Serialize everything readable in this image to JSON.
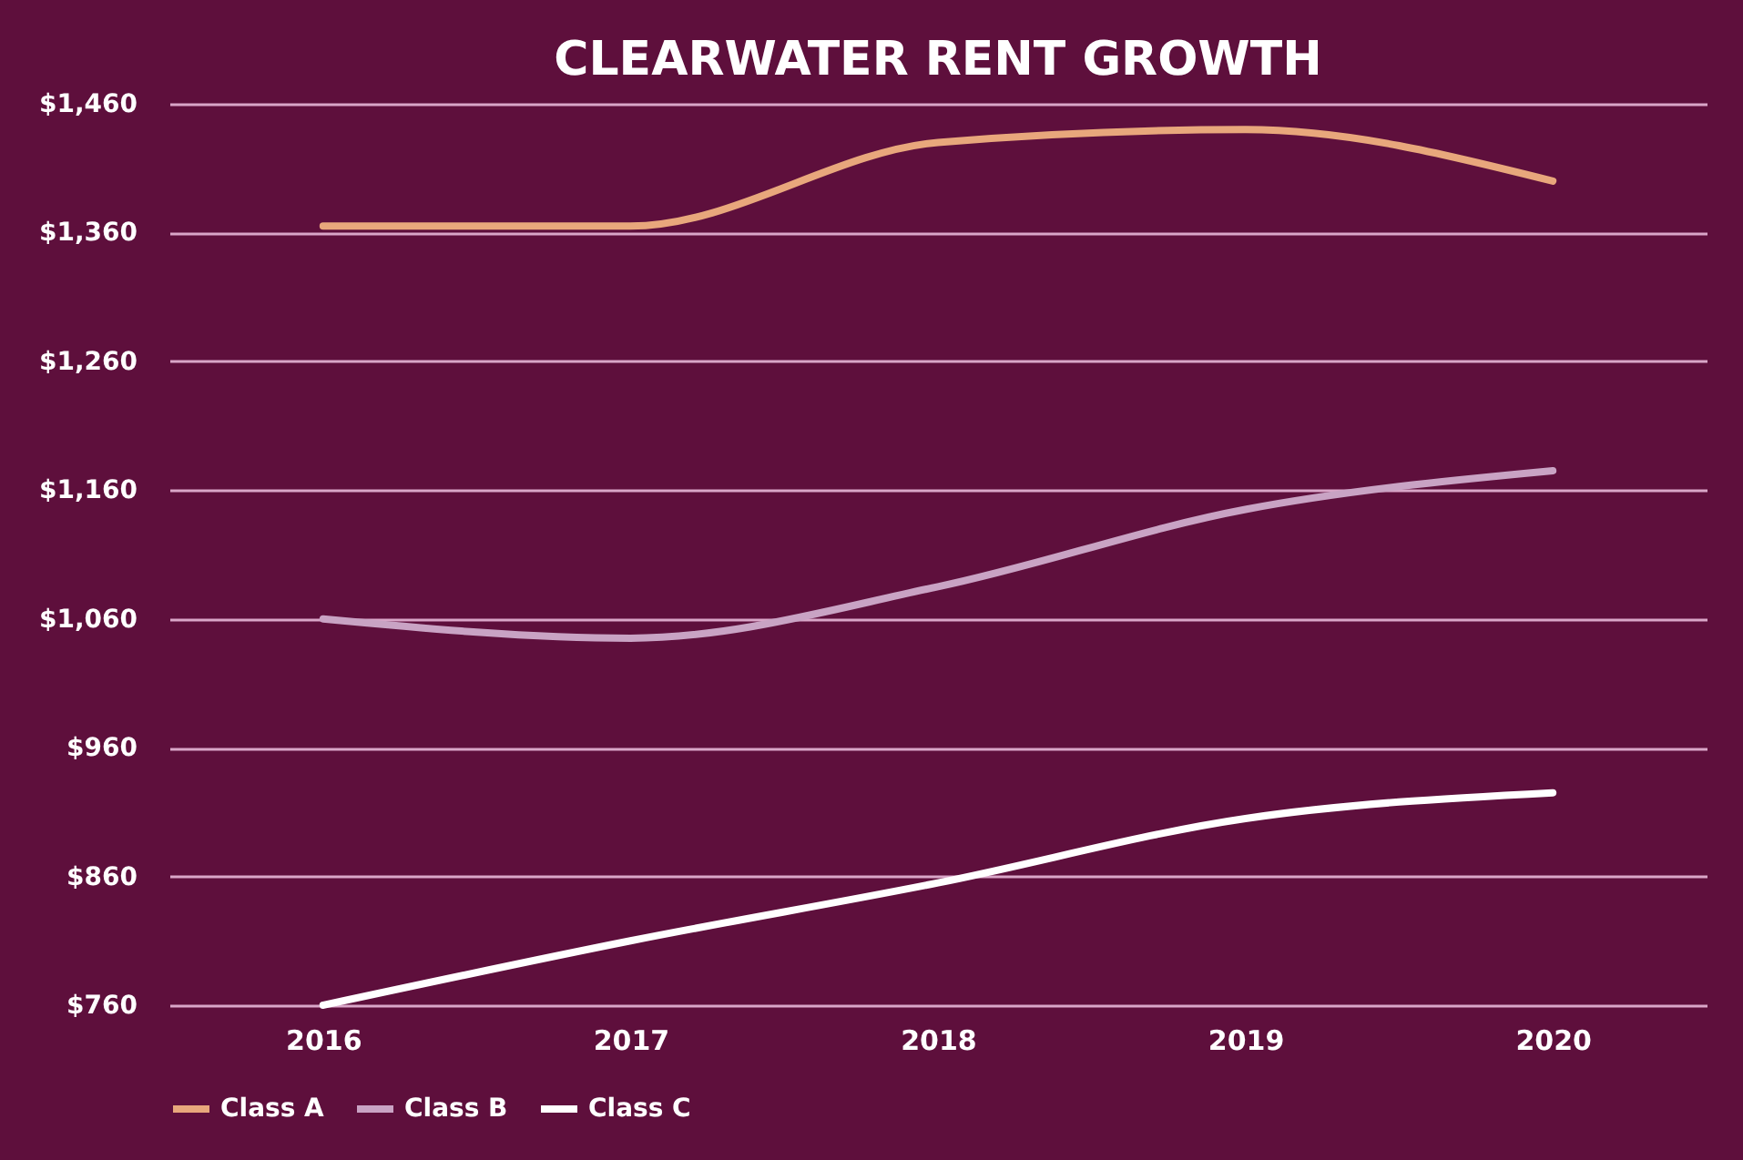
{
  "chart_data": {
    "type": "line",
    "title": "CLEARWATER RENT GROWTH",
    "categories": [
      "2016",
      "2017",
      "2018",
      "2019",
      "2020"
    ],
    "series": [
      {
        "name": "Class A",
        "color": "#e8a77c",
        "values": [
          1365,
          1365,
          1430,
          1440,
          1400
        ]
      },
      {
        "name": "Class B",
        "color": "#c9a3c4",
        "values": [
          1060,
          1045,
          1085,
          1145,
          1175
        ]
      },
      {
        "name": "Class C",
        "color": "#ffffff",
        "values": [
          760,
          810,
          855,
          905,
          925
        ]
      }
    ],
    "ylim": [
      760,
      1460
    ],
    "yticks": [
      {
        "value": 760,
        "label": "$760"
      },
      {
        "value": 860,
        "label": "$860"
      },
      {
        "value": 960,
        "label": "$960"
      },
      {
        "value": 1060,
        "label": "$1,060"
      },
      {
        "value": 1160,
        "label": "$1,160"
      },
      {
        "value": 1260,
        "label": "$1,260"
      },
      {
        "value": 1360,
        "label": "$1,360"
      },
      {
        "value": 1460,
        "label": "$1,460"
      }
    ],
    "grid": "y",
    "legend": "bottom",
    "marker": "none",
    "line_style": "solid"
  }
}
